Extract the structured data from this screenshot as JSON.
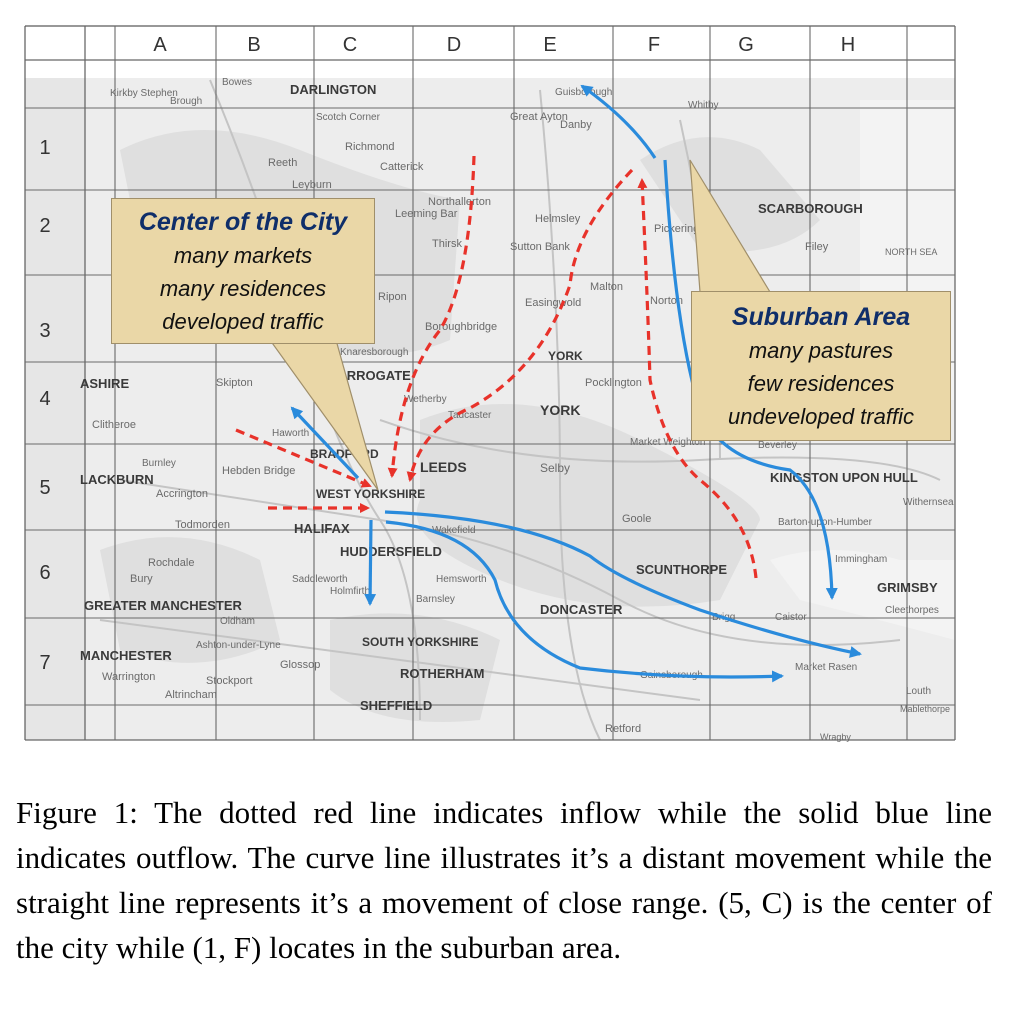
{
  "grid": {
    "columns": [
      "A",
      "B",
      "C",
      "D",
      "E",
      "F",
      "G",
      "H"
    ],
    "rows": [
      "1",
      "2",
      "3",
      "4",
      "5",
      "6",
      "7"
    ]
  },
  "colors": {
    "inflow": "#e8322a",
    "outflow": "#2a8bdc",
    "callout_fill": "#ead7a7",
    "callout_title": "#0f2e6a"
  },
  "places": {
    "darlington": "DARLINGTON",
    "kirkby_stephen": "Kirkby Stephen",
    "brough": "Brough",
    "bowes": "Bowes",
    "scotch_corner": "Scotch Corner",
    "richmond": "Richmond",
    "reeth": "Reeth",
    "catterick": "Catterick",
    "leyburn": "Leyburn",
    "great_ayton": "Great Ayton",
    "danby": "Danby",
    "guisborough": "Guisborough",
    "whitby": "Whitby",
    "scarborough": "SCARBOROUGH",
    "filey": "Filey",
    "north_sea": "NORTH SEA",
    "northallerton": "Northallerton",
    "leeming_bar": "Leeming Bar",
    "thirsk": "Thirsk",
    "helmsley": "Helmsley",
    "pickering": "Pickering",
    "sutton_bank": "Sutton Bank",
    "malton": "Malton",
    "norton": "Norton",
    "easingwold": "Easingwold",
    "ripon": "Ripon",
    "boroughbridge": "Boroughbridge",
    "knaresborough": "Knaresborough",
    "harrogate": "HARROGATE",
    "york_caps": "YORK",
    "york": "YORK",
    "pocklington": "Pocklington",
    "market_weighton": "Market Weighton",
    "beverley": "Beverley",
    "kingston_upon_hull": "KINGSTON UPON HULL",
    "withernsea": "Withernsea",
    "barton": "Barton-upon-Humber",
    "immingham": "Immingham",
    "grimsby": "GRIMSBY",
    "cleethorpes": "Cleethorpes",
    "lancashire": "ASHIRE",
    "clitheroe": "Clitheroe",
    "skipton": "Skipton",
    "wetherby": "Wetherby",
    "tadcaster": "Tadcaster",
    "haworth": "Haworth",
    "burnley": "Burnley",
    "blackburn": "LACKBURN",
    "accrington": "Accrington",
    "hebden_bridge": "Hebden Bridge",
    "bradford": "BRADFORD",
    "leeds": "LEEDS",
    "selby": "Selby",
    "west_yorkshire": "WEST YORKSHIRE",
    "todmorden": "Todmorden",
    "halifax": "HALIFAX",
    "wakefield": "Wakefield",
    "goole": "Goole",
    "huddersfield": "HUDDERSFIELD",
    "rochdale": "Rochdale",
    "bury": "Bury",
    "saddleworth": "Saddleworth",
    "holmfirth": "Holmfirth",
    "hemsworth": "Hemsworth",
    "barnsley": "Barnsley",
    "scunthorpe": "SCUNTHORPE",
    "doncaster": "DONCASTER",
    "brigg": "Brigg",
    "caistor": "Caistor",
    "greater_manchester": "GREATER MANCHESTER",
    "oldham": "Oldham",
    "south_yorkshire": "SOUTH YORKSHIRE",
    "manchester": "MANCHESTER",
    "ashton": "Ashton-under-Lyne",
    "glossop": "Glossop",
    "rotherham": "ROTHERHAM",
    "gainsborough": "Gainsborough",
    "market_rasen": "Market Rasen",
    "louth": "Louth",
    "warrington": "Warrington",
    "stockport": "Stockport",
    "altrincham": "Altrincham",
    "sheffield": "SHEFFIELD",
    "retford": "Retford",
    "mablethorpe": "Mablethorpe",
    "wragby": "Wragby"
  },
  "callouts": {
    "center": {
      "title": "Center of the City",
      "lines": [
        "many markets",
        "many residences",
        "developed traffic"
      ]
    },
    "suburban": {
      "title": "Suburban Area",
      "lines": [
        "many pastures",
        "few residences",
        "undeveloped traffic"
      ]
    }
  },
  "caption": "Figure 1: The dotted red line indicates inflow while the solid blue line indicates outflow. The curve line illustrates it’s a distant movement while the straight line represents it’s a movement of close range. (5, C) is the center of the city while (1, F) locates in the suburban area."
}
